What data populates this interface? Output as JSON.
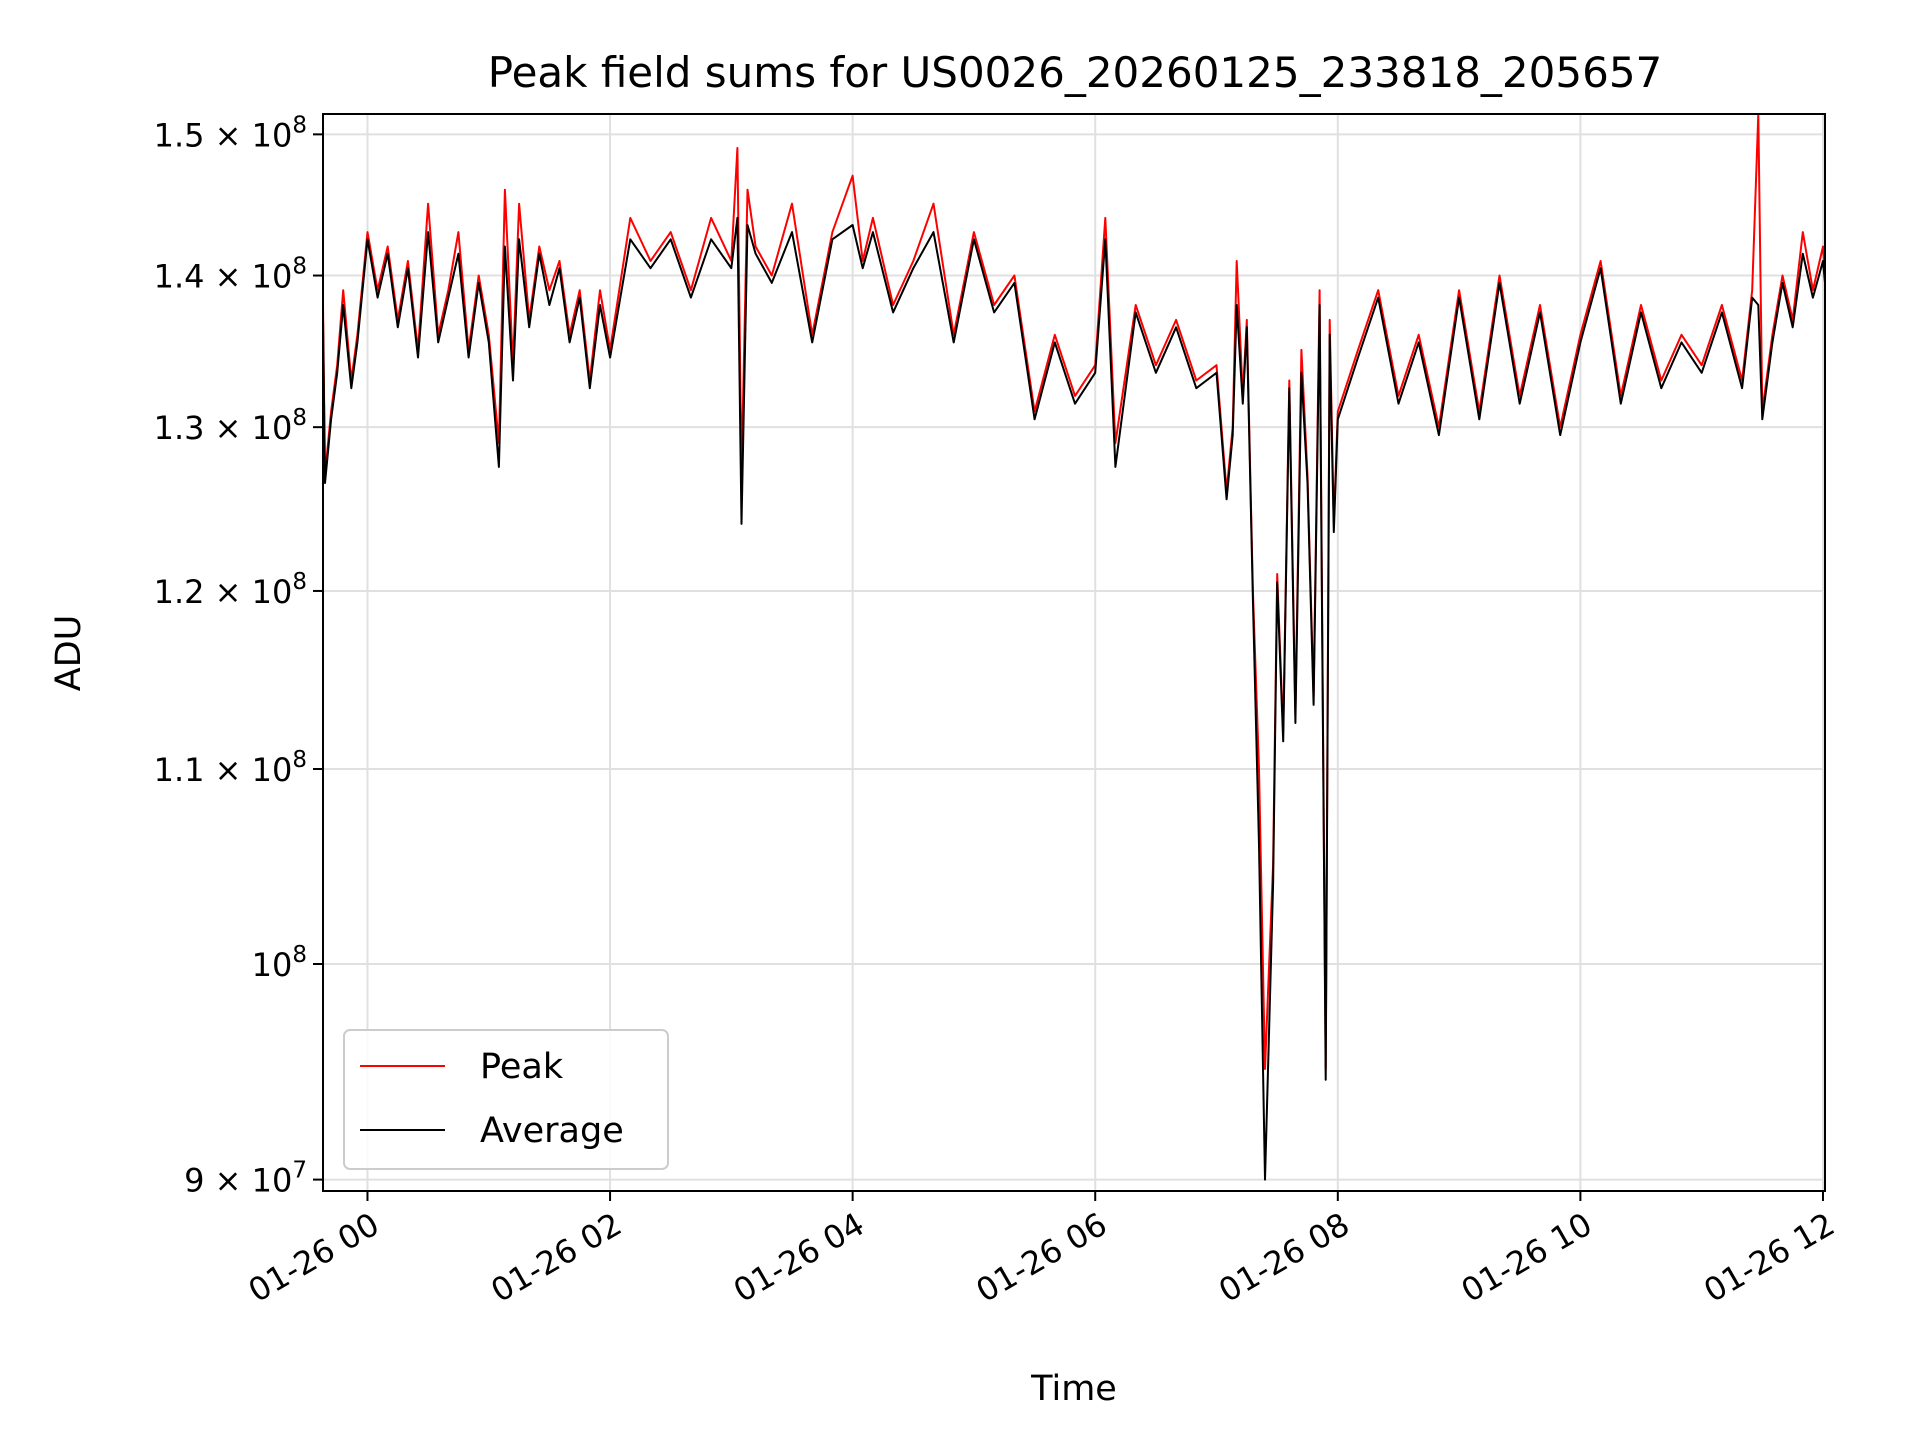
{
  "chart_data": {
    "type": "line",
    "title": "Peak field sums for US0026_20260125_233818_205657",
    "xlabel": "Time",
    "ylabel": "ADU",
    "y_scale": "log",
    "xlim": [
      "2026-01-25T23:38",
      "2026-01-26T12:01"
    ],
    "ylim": [
      89500000,
      151500000
    ],
    "grid": true,
    "legend_position": "lower-left",
    "x_ticks": [
      {
        "value": "2026-01-26T00:00",
        "label": "01-26 00"
      },
      {
        "value": "2026-01-26T02:00",
        "label": "01-26 02"
      },
      {
        "value": "2026-01-26T04:00",
        "label": "01-26 04"
      },
      {
        "value": "2026-01-26T06:00",
        "label": "01-26 06"
      },
      {
        "value": "2026-01-26T08:00",
        "label": "01-26 08"
      },
      {
        "value": "2026-01-26T10:00",
        "label": "01-26 10"
      },
      {
        "value": "2026-01-26T12:00",
        "label": "01-26 12"
      }
    ],
    "y_ticks": [
      {
        "value": 90000000,
        "mantissa": "9",
        "exp": "7"
      },
      {
        "value": 100000000,
        "mantissa": "",
        "exp": "8"
      },
      {
        "value": 110000000,
        "mantissa": "1.1",
        "exp": "8"
      },
      {
        "value": 120000000,
        "mantissa": "1.2",
        "exp": "8"
      },
      {
        "value": 130000000,
        "mantissa": "1.3",
        "exp": "8"
      },
      {
        "value": 140000000,
        "mantissa": "1.4",
        "exp": "8"
      },
      {
        "value": 150000000,
        "mantissa": "1.5",
        "exp": "8"
      }
    ],
    "series": [
      {
        "name": "Peak",
        "color": "#ff0000",
        "x": [
          "2026-01-25T23:38",
          "2026-01-25T23:39",
          "2026-01-25T23:42",
          "2026-01-25T23:45",
          "2026-01-25T23:48",
          "2026-01-25T23:52",
          "2026-01-25T23:55",
          "2026-01-26T00:00",
          "2026-01-26T00:05",
          "2026-01-26T00:10",
          "2026-01-26T00:15",
          "2026-01-26T00:20",
          "2026-01-26T00:25",
          "2026-01-26T00:30",
          "2026-01-26T00:35",
          "2026-01-26T00:40",
          "2026-01-26T00:45",
          "2026-01-26T00:50",
          "2026-01-26T00:55",
          "2026-01-26T01:00",
          "2026-01-26T01:05",
          "2026-01-26T01:08",
          "2026-01-26T01:12",
          "2026-01-26T01:15",
          "2026-01-26T01:20",
          "2026-01-26T01:25",
          "2026-01-26T01:30",
          "2026-01-26T01:35",
          "2026-01-26T01:40",
          "2026-01-26T01:45",
          "2026-01-26T01:50",
          "2026-01-26T01:55",
          "2026-01-26T02:00",
          "2026-01-26T02:10",
          "2026-01-26T02:20",
          "2026-01-26T02:30",
          "2026-01-26T02:40",
          "2026-01-26T02:50",
          "2026-01-26T03:00",
          "2026-01-26T03:03",
          "2026-01-26T03:05",
          "2026-01-26T03:08",
          "2026-01-26T03:12",
          "2026-01-26T03:20",
          "2026-01-26T03:30",
          "2026-01-26T03:40",
          "2026-01-26T03:50",
          "2026-01-26T04:00",
          "2026-01-26T04:05",
          "2026-01-26T04:10",
          "2026-01-26T04:20",
          "2026-01-26T04:30",
          "2026-01-26T04:40",
          "2026-01-26T04:50",
          "2026-01-26T05:00",
          "2026-01-26T05:10",
          "2026-01-26T05:20",
          "2026-01-26T05:30",
          "2026-01-26T05:40",
          "2026-01-26T05:50",
          "2026-01-26T06:00",
          "2026-01-26T06:05",
          "2026-01-26T06:10",
          "2026-01-26T06:20",
          "2026-01-26T06:30",
          "2026-01-26T06:40",
          "2026-01-26T06:50",
          "2026-01-26T07:00",
          "2026-01-26T07:05",
          "2026-01-26T07:08",
          "2026-01-26T07:10",
          "2026-01-26T07:13",
          "2026-01-26T07:15",
          "2026-01-26T07:18",
          "2026-01-26T07:21",
          "2026-01-26T07:24",
          "2026-01-26T07:28",
          "2026-01-26T07:30",
          "2026-01-26T07:33",
          "2026-01-26T07:36",
          "2026-01-26T07:39",
          "2026-01-26T07:42",
          "2026-01-26T07:45",
          "2026-01-26T07:48",
          "2026-01-26T07:51",
          "2026-01-26T07:54",
          "2026-01-26T07:56",
          "2026-01-26T07:58",
          "2026-01-26T08:00",
          "2026-01-26T08:10",
          "2026-01-26T08:20",
          "2026-01-26T08:30",
          "2026-01-26T08:40",
          "2026-01-26T08:50",
          "2026-01-26T09:00",
          "2026-01-26T09:10",
          "2026-01-26T09:20",
          "2026-01-26T09:30",
          "2026-01-26T09:40",
          "2026-01-26T09:50",
          "2026-01-26T10:00",
          "2026-01-26T10:10",
          "2026-01-26T10:20",
          "2026-01-26T10:30",
          "2026-01-26T10:40",
          "2026-01-26T10:50",
          "2026-01-26T11:00",
          "2026-01-26T11:10",
          "2026-01-26T11:20",
          "2026-01-26T11:25",
          "2026-01-26T11:28",
          "2026-01-26T11:30",
          "2026-01-26T11:35",
          "2026-01-26T11:40",
          "2026-01-26T11:45",
          "2026-01-26T11:50",
          "2026-01-26T11:55",
          "2026-01-26T12:00",
          "2026-01-26T12:01"
        ],
        "values": [
          138000000,
          127000000,
          131000000,
          134000000,
          139000000,
          133000000,
          136000000,
          143000000,
          139000000,
          142000000,
          137000000,
          141000000,
          135000000,
          145000000,
          136000000,
          139000000,
          143000000,
          135000000,
          140000000,
          136000000,
          129000000,
          146000000,
          134000000,
          145000000,
          137000000,
          142000000,
          139000000,
          141000000,
          136000000,
          139000000,
          133000000,
          139000000,
          135000000,
          144000000,
          141000000,
          143000000,
          139000000,
          144000000,
          141000000,
          149000000,
          127000000,
          146000000,
          142000000,
          140000000,
          145000000,
          136000000,
          143000000,
          147000000,
          141000000,
          144000000,
          138000000,
          141000000,
          145000000,
          136000000,
          143000000,
          138000000,
          140000000,
          131000000,
          136000000,
          132000000,
          134000000,
          144000000,
          129000000,
          138000000,
          134000000,
          137000000,
          133000000,
          134000000,
          126000000,
          130000000,
          141000000,
          132000000,
          137000000,
          120000000,
          110000000,
          95000000,
          105000000,
          121000000,
          112000000,
          133000000,
          113000000,
          135000000,
          127000000,
          114000000,
          139000000,
          95000000,
          137000000,
          124000000,
          131000000,
          135000000,
          139000000,
          132000000,
          136000000,
          130000000,
          139000000,
          131000000,
          140000000,
          132000000,
          138000000,
          130000000,
          136000000,
          141000000,
          132000000,
          138000000,
          133000000,
          136000000,
          134000000,
          138000000,
          133000000,
          139000000,
          152000000,
          131000000,
          136000000,
          140000000,
          137000000,
          143000000,
          139000000,
          142000000,
          140000000
        ]
      },
      {
        "name": "Average",
        "color": "#000000",
        "x": [
          "2026-01-25T23:38",
          "2026-01-25T23:39",
          "2026-01-25T23:42",
          "2026-01-25T23:45",
          "2026-01-25T23:48",
          "2026-01-25T23:52",
          "2026-01-25T23:55",
          "2026-01-26T00:00",
          "2026-01-26T00:05",
          "2026-01-26T00:10",
          "2026-01-26T00:15",
          "2026-01-26T00:20",
          "2026-01-26T00:25",
          "2026-01-26T00:30",
          "2026-01-26T00:35",
          "2026-01-26T00:40",
          "2026-01-26T00:45",
          "2026-01-26T00:50",
          "2026-01-26T00:55",
          "2026-01-26T01:00",
          "2026-01-26T01:05",
          "2026-01-26T01:08",
          "2026-01-26T01:12",
          "2026-01-26T01:15",
          "2026-01-26T01:20",
          "2026-01-26T01:25",
          "2026-01-26T01:30",
          "2026-01-26T01:35",
          "2026-01-26T01:40",
          "2026-01-26T01:45",
          "2026-01-26T01:50",
          "2026-01-26T01:55",
          "2026-01-26T02:00",
          "2026-01-26T02:10",
          "2026-01-26T02:20",
          "2026-01-26T02:30",
          "2026-01-26T02:40",
          "2026-01-26T02:50",
          "2026-01-26T03:00",
          "2026-01-26T03:03",
          "2026-01-26T03:05",
          "2026-01-26T03:08",
          "2026-01-26T03:12",
          "2026-01-26T03:20",
          "2026-01-26T03:30",
          "2026-01-26T03:40",
          "2026-01-26T03:50",
          "2026-01-26T04:00",
          "2026-01-26T04:05",
          "2026-01-26T04:10",
          "2026-01-26T04:20",
          "2026-01-26T04:30",
          "2026-01-26T04:40",
          "2026-01-26T04:50",
          "2026-01-26T05:00",
          "2026-01-26T05:10",
          "2026-01-26T05:20",
          "2026-01-26T05:30",
          "2026-01-26T05:40",
          "2026-01-26T05:50",
          "2026-01-26T06:00",
          "2026-01-26T06:05",
          "2026-01-26T06:10",
          "2026-01-26T06:20",
          "2026-01-26T06:30",
          "2026-01-26T06:40",
          "2026-01-26T06:50",
          "2026-01-26T07:00",
          "2026-01-26T07:05",
          "2026-01-26T07:08",
          "2026-01-26T07:10",
          "2026-01-26T07:13",
          "2026-01-26T07:15",
          "2026-01-26T07:18",
          "2026-01-26T07:21",
          "2026-01-26T07:24",
          "2026-01-26T07:28",
          "2026-01-26T07:30",
          "2026-01-26T07:33",
          "2026-01-26T07:36",
          "2026-01-26T07:39",
          "2026-01-26T07:42",
          "2026-01-26T07:45",
          "2026-01-26T07:48",
          "2026-01-26T07:51",
          "2026-01-26T07:54",
          "2026-01-26T07:56",
          "2026-01-26T07:58",
          "2026-01-26T08:00",
          "2026-01-26T08:10",
          "2026-01-26T08:20",
          "2026-01-26T08:30",
          "2026-01-26T08:40",
          "2026-01-26T08:50",
          "2026-01-26T09:00",
          "2026-01-26T09:10",
          "2026-01-26T09:20",
          "2026-01-26T09:30",
          "2026-01-26T09:40",
          "2026-01-26T09:50",
          "2026-01-26T10:00",
          "2026-01-26T10:10",
          "2026-01-26T10:20",
          "2026-01-26T10:30",
          "2026-01-26T10:40",
          "2026-01-26T10:50",
          "2026-01-26T11:00",
          "2026-01-26T11:10",
          "2026-01-26T11:20",
          "2026-01-26T11:25",
          "2026-01-26T11:28",
          "2026-01-26T11:30",
          "2026-01-26T11:35",
          "2026-01-26T11:40",
          "2026-01-26T11:45",
          "2026-01-26T11:50",
          "2026-01-26T11:55",
          "2026-01-26T12:00",
          "2026-01-26T12:01"
        ],
        "values": [
          137000000,
          126500000,
          130500000,
          133500000,
          138000000,
          132500000,
          135500000,
          142500000,
          138500000,
          141500000,
          136500000,
          140500000,
          134500000,
          143000000,
          135500000,
          138500000,
          141500000,
          134500000,
          139500000,
          135500000,
          127500000,
          142000000,
          133000000,
          142500000,
          136500000,
          141500000,
          138000000,
          140500000,
          135500000,
          138500000,
          132500000,
          138000000,
          134500000,
          142500000,
          140500000,
          142500000,
          138500000,
          142500000,
          140500000,
          144000000,
          124000000,
          143500000,
          141500000,
          139500000,
          143000000,
          135500000,
          142500000,
          143500000,
          140500000,
          143000000,
          137500000,
          140500000,
          143000000,
          135500000,
          142500000,
          137500000,
          139500000,
          130500000,
          135500000,
          131500000,
          133500000,
          142500000,
          127500000,
          137500000,
          133500000,
          136500000,
          132500000,
          133500000,
          125500000,
          129500000,
          138000000,
          131500000,
          136500000,
          119500000,
          106000000,
          90000000,
          104000000,
          120500000,
          111500000,
          132500000,
          112500000,
          133500000,
          126500000,
          113500000,
          138000000,
          94500000,
          136000000,
          123500000,
          130500000,
          134500000,
          138500000,
          131500000,
          135500000,
          129500000,
          138500000,
          130500000,
          139500000,
          131500000,
          137500000,
          129500000,
          135500000,
          140500000,
          131500000,
          137500000,
          132500000,
          135500000,
          133500000,
          137500000,
          132500000,
          138500000,
          138000000,
          130500000,
          135500000,
          139500000,
          136500000,
          141500000,
          138500000,
          141000000,
          139500000
        ]
      }
    ]
  }
}
